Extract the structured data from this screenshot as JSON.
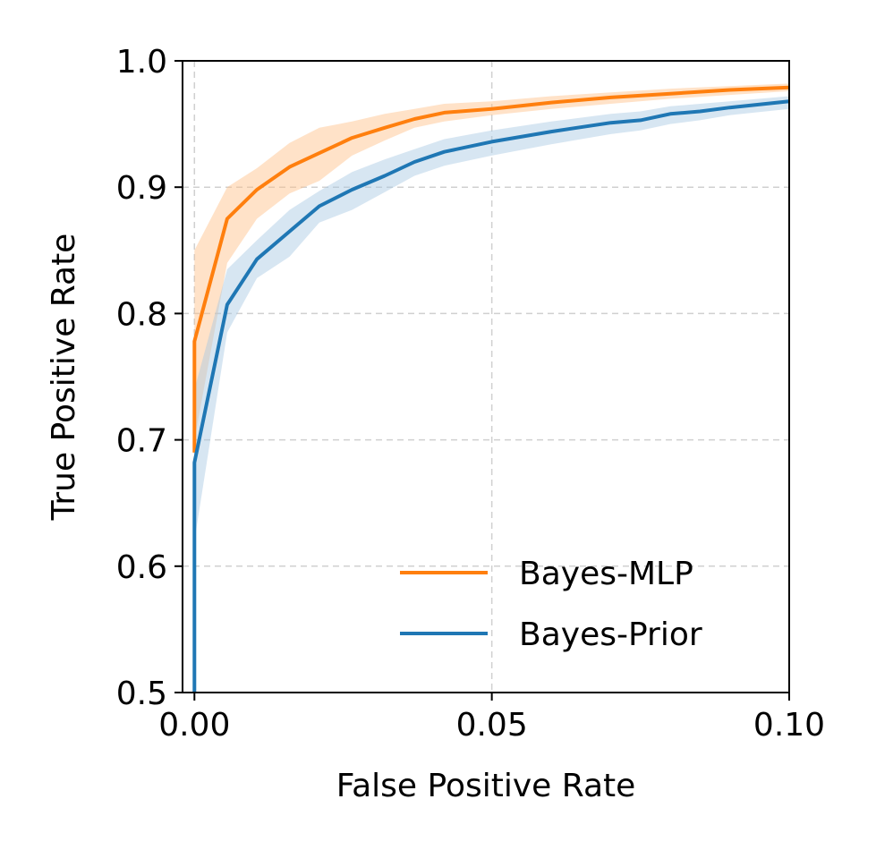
{
  "chart_data": {
    "type": "line",
    "title": "",
    "xlabel": "False Positive Rate",
    "ylabel": "True Positive Rate",
    "xlim": [
      -0.002,
      0.1
    ],
    "ylim": [
      0.5,
      1.0
    ],
    "xticks": [
      0.0,
      0.05,
      0.1
    ],
    "xtick_labels": [
      "0.00",
      "0.05",
      "0.10"
    ],
    "yticks": [
      0.5,
      0.6,
      0.7,
      0.8,
      0.9,
      1.0
    ],
    "ytick_labels": [
      "0.5",
      "0.6",
      "0.7",
      "0.8",
      "0.9",
      "1.0"
    ],
    "grid": true,
    "legend_position": "bottom-right",
    "series": [
      {
        "name": "Bayes-MLP",
        "color": "#ff7f0e",
        "band_color": "#ffbe86",
        "x": [
          0.0,
          0.0,
          0.0055,
          0.0105,
          0.016,
          0.021,
          0.0265,
          0.032,
          0.037,
          0.042,
          0.05,
          0.06,
          0.07,
          0.08,
          0.09,
          0.1
        ],
        "y": [
          0.69,
          0.778,
          0.875,
          0.898,
          0.916,
          0.927,
          0.939,
          0.947,
          0.954,
          0.959,
          0.962,
          0.967,
          0.971,
          0.974,
          0.977,
          0.979
        ],
        "lower": [
          0.63,
          0.7,
          0.84,
          0.875,
          0.895,
          0.905,
          0.925,
          0.937,
          0.947,
          0.952,
          0.957,
          0.962,
          0.966,
          0.97,
          0.973,
          0.976
        ],
        "upper": [
          0.74,
          0.85,
          0.9,
          0.915,
          0.935,
          0.947,
          0.952,
          0.958,
          0.962,
          0.966,
          0.968,
          0.972,
          0.975,
          0.978,
          0.98,
          0.982
        ]
      },
      {
        "name": "Bayes-Prior",
        "color": "#1f77b4",
        "band_color": "#a6c8e3",
        "x": [
          0.0,
          0.0,
          0.0055,
          0.0105,
          0.016,
          0.021,
          0.0265,
          0.032,
          0.037,
          0.042,
          0.05,
          0.06,
          0.07,
          0.075,
          0.08,
          0.085,
          0.09,
          0.1
        ],
        "y": [
          0.5,
          0.682,
          0.807,
          0.843,
          0.865,
          0.885,
          0.898,
          0.909,
          0.92,
          0.928,
          0.936,
          0.944,
          0.951,
          0.953,
          0.958,
          0.96,
          0.963,
          0.968
        ],
        "lower": [
          0.5,
          0.62,
          0.785,
          0.828,
          0.845,
          0.872,
          0.882,
          0.896,
          0.909,
          0.917,
          0.925,
          0.934,
          0.942,
          0.945,
          0.95,
          0.953,
          0.957,
          0.962
        ],
        "upper": [
          0.5,
          0.74,
          0.835,
          0.858,
          0.882,
          0.897,
          0.912,
          0.922,
          0.93,
          0.938,
          0.945,
          0.952,
          0.958,
          0.96,
          0.964,
          0.966,
          0.968,
          0.972
        ]
      }
    ]
  }
}
